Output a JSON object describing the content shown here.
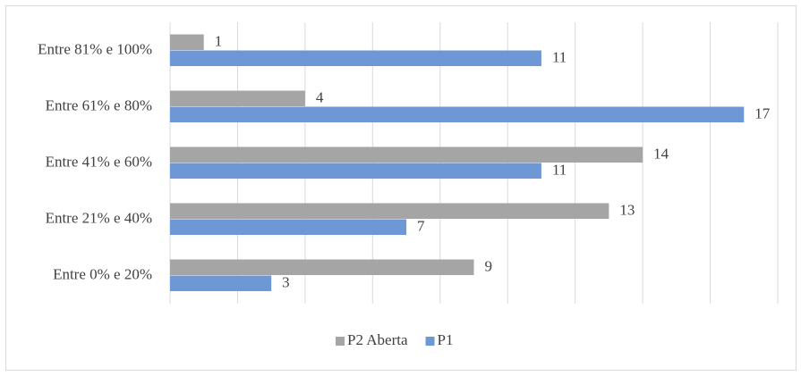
{
  "chart_data": {
    "type": "hbar",
    "categories": [
      "Entre 0% e 20%",
      "Entre 21% e 40%",
      "Entre 41% e 60%",
      "Entre 61% e 80%",
      "Entre 81% e 100%"
    ],
    "series": [
      {
        "name": "P2 Aberta",
        "color": "#a5a5a5",
        "values": [
          9,
          13,
          14,
          4,
          1
        ]
      },
      {
        "name": "P1",
        "color": "#6e97d6",
        "values": [
          3,
          7,
          11,
          17,
          11
        ]
      }
    ],
    "xlim": [
      0,
      18
    ],
    "xticks": [
      0,
      2,
      4,
      6,
      8,
      10,
      12,
      14,
      16,
      18
    ],
    "grid": true,
    "legend": "bottom"
  }
}
